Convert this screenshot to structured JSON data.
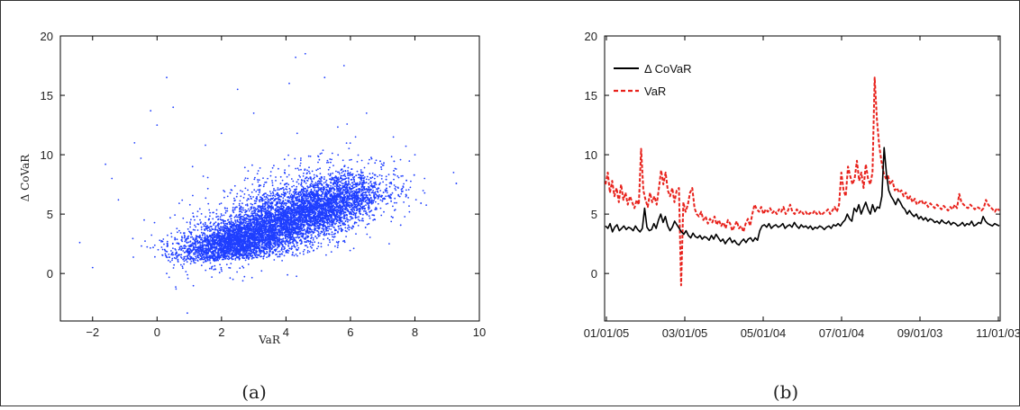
{
  "charts": [
    {
      "caption": "(a)",
      "chart_data": {
        "type": "scatter",
        "xlabel": "VaR",
        "ylabel": "Δ CoVaR",
        "xlim": [
          -3,
          10
        ],
        "ylim": [
          -4,
          20
        ],
        "xticks": [
          "−2",
          "0",
          "2",
          "4",
          "6",
          "8",
          "10"
        ],
        "yticks": [
          "0",
          "5",
          "10",
          "15",
          "20"
        ],
        "color": "#1f3fff",
        "approx_point_count": 9000,
        "clusters": [
          {
            "center": [
              2.5,
              2.8
            ],
            "spread": [
              0.9,
              1.1
            ],
            "share": 0.3
          },
          {
            "center": [
              5.0,
              5.5
            ],
            "spread": [
              1.0,
              1.3
            ],
            "share": 0.4
          },
          {
            "center": [
              3.8,
              4.5
            ],
            "spread": [
              1.5,
              2.3
            ],
            "share": 0.25
          }
        ],
        "points": [
          [
            -2.4,
            2.6
          ],
          [
            -2.0,
            0.5
          ],
          [
            -1.6,
            9.2
          ],
          [
            -1.4,
            8.0
          ],
          [
            -1.2,
            6.2
          ],
          [
            -0.7,
            11.0
          ],
          [
            -0.5,
            9.7
          ],
          [
            -0.4,
            4.5
          ],
          [
            -0.2,
            13.7
          ],
          [
            0.0,
            12.5
          ],
          [
            0.3,
            16.5
          ],
          [
            0.5,
            14.0
          ],
          [
            1.1,
            9.0
          ],
          [
            1.5,
            10.8
          ],
          [
            2.0,
            11.8
          ],
          [
            2.5,
            15.5
          ],
          [
            3.0,
            13.5
          ],
          [
            4.1,
            16.0
          ],
          [
            4.3,
            18.2
          ],
          [
            4.6,
            18.5
          ],
          [
            5.2,
            16.5
          ],
          [
            5.8,
            17.5
          ],
          [
            6.5,
            13.5
          ],
          [
            8.0,
            10.0
          ],
          [
            8.3,
            8.0
          ],
          [
            9.2,
            8.5
          ],
          [
            0.3,
            0.0
          ],
          [
            1.7,
            -0.3
          ]
        ]
      }
    },
    {
      "caption": "(b)",
      "chart_data": {
        "type": "line",
        "ylim": [
          -4,
          20
        ],
        "yticks": [
          "0",
          "5",
          "10",
          "15",
          "20"
        ],
        "x_tick_labels": [
          "01/01/05",
          "03/01/05",
          "05/01/04",
          "07/01/04",
          "09/01/03",
          "11/01/03"
        ],
        "legend_position": "top-left",
        "series": [
          {
            "name": "Δ CoVaR",
            "color": "#000000",
            "style": "solid",
            "values": [
              4.0,
              3.8,
              4.2,
              3.5,
              3.9,
              4.1,
              3.6,
              3.8,
              4.0,
              3.7,
              3.9,
              3.8,
              3.6,
              4.0,
              3.7,
              3.5,
              3.8,
              5.5,
              3.9,
              3.6,
              3.7,
              4.2,
              3.8,
              4.5,
              5.0,
              4.3,
              4.8,
              4.0,
              3.6,
              3.9,
              4.4,
              4.1,
              3.8,
              3.5,
              3.3,
              3.6,
              3.2,
              3.0,
              3.4,
              3.1,
              3.0,
              3.2,
              2.9,
              3.1,
              3.0,
              2.8,
              3.2,
              2.9,
              3.3,
              3.0,
              2.7,
              2.9,
              2.5,
              2.8,
              3.0,
              2.6,
              2.8,
              2.5,
              2.4,
              2.7,
              2.9,
              2.6,
              2.9,
              3.0,
              2.7,
              3.0,
              2.8,
              3.6,
              4.0,
              4.1,
              3.9,
              4.2,
              3.8,
              4.0,
              4.1,
              3.9,
              4.0,
              4.2,
              3.8,
              4.0,
              4.1,
              3.9,
              4.3,
              4.0,
              3.8,
              4.1,
              3.9,
              4.0,
              3.8,
              4.0,
              3.7,
              3.9,
              3.8,
              4.0,
              3.9,
              3.7,
              3.9,
              4.0,
              3.8,
              4.1,
              4.0,
              4.2,
              4.0,
              4.3,
              4.5,
              5.0,
              4.6,
              4.4,
              5.5,
              5.2,
              5.8,
              5.0,
              5.5,
              6.0,
              5.4,
              5.0,
              5.8,
              5.2,
              5.6,
              5.5,
              6.5,
              10.6,
              8.4,
              7.0,
              6.5,
              6.2,
              5.8,
              6.3,
              6.0,
              5.6,
              5.4,
              5.0,
              5.3,
              5.0,
              4.8,
              5.0,
              4.6,
              4.8,
              4.5,
              4.7,
              4.4,
              4.6,
              4.5,
              4.3,
              4.4,
              4.2,
              4.5,
              4.3,
              4.2,
              4.4,
              4.1,
              4.3,
              4.2,
              4.0,
              4.1,
              4.3,
              4.0,
              4.2,
              4.1,
              4.4,
              4.0,
              4.1,
              4.3,
              4.2,
              4.8,
              4.4,
              4.2,
              4.1,
              4.0,
              4.2,
              4.1,
              4.0
            ]
          },
          {
            "name": "VaR",
            "color": "#e8221c",
            "style": "dashed",
            "values": [
              7.5,
              8.5,
              6.8,
              7.8,
              6.5,
              7.2,
              6.0,
              7.5,
              6.2,
              6.8,
              5.8,
              6.5,
              6.0,
              5.5,
              6.2,
              5.8,
              10.5,
              7.0,
              6.2,
              5.6,
              6.8,
              6.0,
              6.5,
              5.8,
              7.2,
              8.7,
              7.5,
              8.5,
              7.0,
              6.5,
              7.2,
              6.0,
              7.0,
              7.2,
              -1.0,
              6.0,
              5.2,
              5.8,
              6.8,
              7.2,
              5.5,
              5.0,
              4.8,
              5.2,
              4.5,
              4.8,
              4.2,
              4.6,
              4.3,
              4.8,
              4.1,
              4.5,
              4.0,
              4.3,
              3.8,
              4.5,
              4.2,
              3.6,
              4.0,
              4.4,
              3.8,
              4.0,
              3.5,
              4.2,
              4.6,
              4.0,
              5.0,
              5.8,
              5.4,
              5.2,
              5.6,
              5.0,
              5.4,
              5.2,
              5.5,
              5.1,
              5.3,
              5.0,
              5.4,
              5.2,
              5.6,
              5.0,
              5.3,
              5.8,
              5.2,
              5.0,
              5.4,
              5.1,
              5.3,
              5.0,
              5.2,
              4.9,
              5.1,
              5.0,
              5.3,
              5.0,
              5.2,
              4.9,
              5.1,
              5.2,
              5.4,
              5.0,
              5.3,
              5.6,
              5.2,
              5.8,
              8.5,
              7.0,
              6.5,
              9.0,
              8.2,
              7.5,
              8.0,
              9.5,
              7.8,
              8.5,
              7.2,
              9.2,
              8.0,
              7.5,
              8.5,
              16.5,
              13.0,
              10.8,
              9.5,
              8.5,
              8.0,
              8.2,
              7.5,
              7.8,
              7.0,
              7.2,
              6.8,
              7.0,
              6.5,
              6.8,
              6.2,
              6.5,
              6.0,
              6.3,
              5.8,
              6.0,
              6.2,
              5.8,
              6.0,
              5.6,
              5.9,
              5.7,
              5.5,
              5.8,
              5.6,
              5.4,
              5.7,
              5.5,
              5.3,
              5.6,
              5.4,
              5.8,
              5.5,
              6.7,
              6.0,
              5.8,
              5.6,
              5.5,
              5.8,
              5.6,
              5.4,
              5.6,
              5.5,
              5.3,
              5.5,
              6.2,
              5.8,
              5.6,
              5.4,
              5.2,
              5.5,
              5.3
            ]
          }
        ]
      }
    }
  ]
}
